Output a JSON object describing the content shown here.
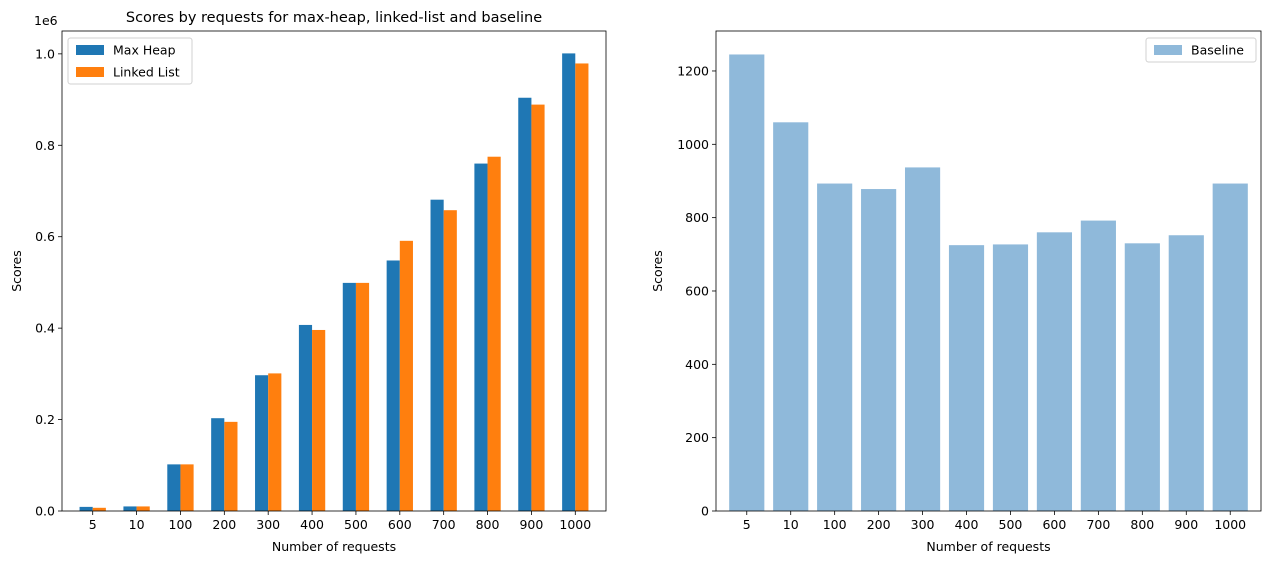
{
  "chart_data": [
    {
      "type": "bar",
      "title": "Scores by requests for max-heap, linked-list and baseline",
      "xlabel": "Number of requests",
      "ylabel": "Scores",
      "y_offset_label": "1e6",
      "categories": [
        "5",
        "10",
        "100",
        "200",
        "300",
        "400",
        "500",
        "600",
        "700",
        "800",
        "900",
        "1000"
      ],
      "series": [
        {
          "name": "Max Heap",
          "color": "#1f77b4",
          "values": [
            9000,
            10000,
            102000,
            203000,
            297000,
            407000,
            499000,
            548000,
            681000,
            760000,
            904000,
            1001000
          ]
        },
        {
          "name": "Linked List",
          "color": "#ff7f0e",
          "values": [
            7000,
            10000,
            102000,
            195000,
            301000,
            396000,
            499000,
            591000,
            658000,
            775000,
            889000,
            979000
          ]
        }
      ],
      "ylim": [
        0,
        1050000
      ],
      "yticks": [
        0,
        200000,
        400000,
        600000,
        800000,
        1000000
      ],
      "ytick_labels": [
        "0.0",
        "0.2",
        "0.4",
        "0.6",
        "0.8",
        "1.0"
      ],
      "legend_position": "top-left",
      "grid": false
    },
    {
      "type": "bar",
      "title": "",
      "xlabel": "Number of requests",
      "ylabel": "Scores",
      "categories": [
        "5",
        "10",
        "100",
        "200",
        "300",
        "400",
        "500",
        "600",
        "700",
        "800",
        "900",
        "1000"
      ],
      "series": [
        {
          "name": "Baseline",
          "color": "#8fb9da",
          "values": [
            1245,
            1060,
            893,
            878,
            937,
            725,
            727,
            760,
            792,
            730,
            752,
            893
          ]
        }
      ],
      "ylim": [
        0,
        1309
      ],
      "yticks": [
        0,
        200,
        400,
        600,
        800,
        1000,
        1200
      ],
      "ytick_labels": [
        "0",
        "200",
        "400",
        "600",
        "800",
        "1000",
        "1200"
      ],
      "legend_position": "top-right",
      "grid": false
    }
  ]
}
